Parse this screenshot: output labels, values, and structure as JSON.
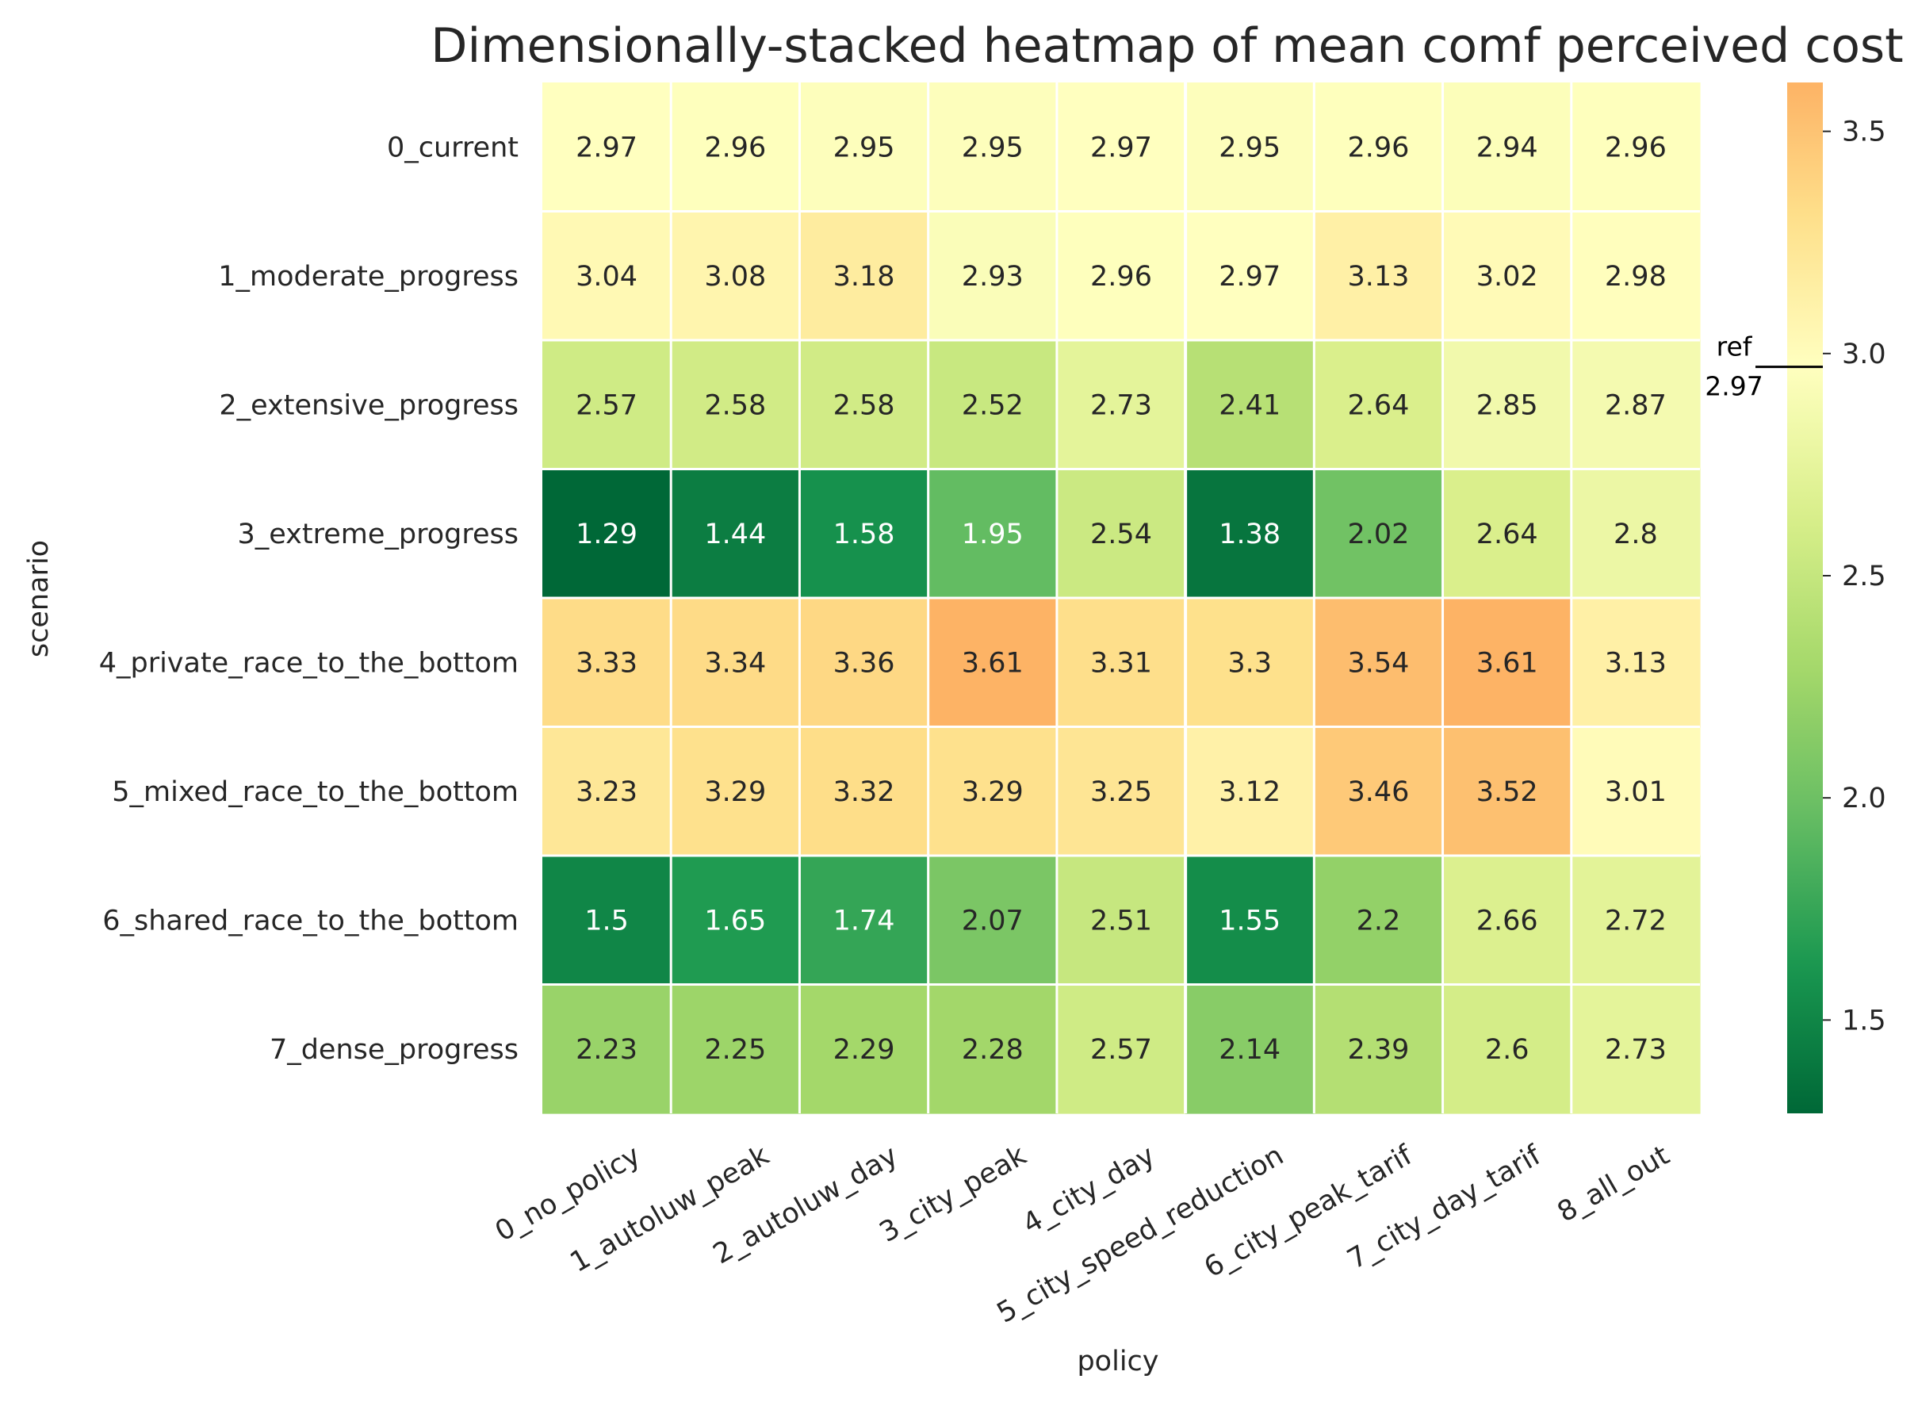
{
  "chart_data": {
    "type": "heatmap",
    "title": "Dimensionally-stacked heatmap of mean comf perceived cost",
    "xlabel": "policy",
    "ylabel": "scenario",
    "columns": [
      "0_no_policy",
      "1_autoluw_peak",
      "2_autoluw_day",
      "3_city_peak",
      "4_city_day",
      "5_city_speed_reduction",
      "6_city_peak_tarif",
      "7_city_day_tarif",
      "8_all_out"
    ],
    "rows": [
      "0_current",
      "1_moderate_progress",
      "2_extensive_progress",
      "3_extreme_progress",
      "4_private_race_to_the_bottom",
      "5_mixed_race_to_the_bottom",
      "6_shared_race_to_the_bottom",
      "7_dense_progress"
    ],
    "values": [
      [
        2.97,
        2.96,
        2.95,
        2.95,
        2.97,
        2.95,
        2.96,
        2.94,
        2.96
      ],
      [
        3.04,
        3.08,
        3.18,
        2.93,
        2.96,
        2.97,
        3.13,
        3.02,
        2.98
      ],
      [
        2.57,
        2.58,
        2.58,
        2.52,
        2.73,
        2.41,
        2.64,
        2.85,
        2.87
      ],
      [
        1.29,
        1.44,
        1.58,
        1.95,
        2.54,
        1.38,
        2.02,
        2.64,
        2.8
      ],
      [
        3.33,
        3.34,
        3.36,
        3.61,
        3.31,
        3.3,
        3.54,
        3.61,
        3.13
      ],
      [
        3.23,
        3.29,
        3.32,
        3.29,
        3.25,
        3.12,
        3.46,
        3.52,
        3.01
      ],
      [
        1.5,
        1.65,
        1.74,
        2.07,
        2.51,
        1.55,
        2.2,
        2.66,
        2.72
      ],
      [
        2.23,
        2.25,
        2.29,
        2.28,
        2.57,
        2.14,
        2.39,
        2.6,
        2.73
      ]
    ],
    "value_labels": [
      [
        "2.97",
        "2.96",
        "2.95",
        "2.95",
        "2.97",
        "2.95",
        "2.96",
        "2.94",
        "2.96"
      ],
      [
        "3.04",
        "3.08",
        "3.18",
        "2.93",
        "2.96",
        "2.97",
        "3.13",
        "3.02",
        "2.98"
      ],
      [
        "2.57",
        "2.58",
        "2.58",
        "2.52",
        "2.73",
        "2.41",
        "2.64",
        "2.85",
        "2.87"
      ],
      [
        "1.29",
        "1.44",
        "1.58",
        "1.95",
        "2.54",
        "1.38",
        "2.02",
        "2.64",
        "2.8"
      ],
      [
        "3.33",
        "3.34",
        "3.36",
        "3.61",
        "3.31",
        "3.3",
        "3.54",
        "3.61",
        "3.13"
      ],
      [
        "3.23",
        "3.29",
        "3.32",
        "3.29",
        "3.25",
        "3.12",
        "3.46",
        "3.52",
        "3.01"
      ],
      [
        "1.5",
        "1.65",
        "1.74",
        "2.07",
        "2.51",
        "1.55",
        "2.2",
        "2.66",
        "2.72"
      ],
      [
        "2.23",
        "2.25",
        "2.29",
        "2.28",
        "2.57",
        "2.14",
        "2.39",
        "2.6",
        "2.73"
      ]
    ],
    "column_group_boundaries_after": [
      5
    ],
    "colormap": "RdYlGn_r",
    "colormap_center": 2.97,
    "vmin": 1.29,
    "vmax": 3.61,
    "colorbar": {
      "ticks": [
        1.5,
        2.0,
        2.5,
        3.0,
        3.5
      ],
      "tick_labels": [
        "1.5",
        "2.0",
        "2.5",
        "3.0",
        "3.5"
      ],
      "reference": {
        "value": 2.97,
        "label_top": "ref",
        "label_bottom": "2.97"
      }
    },
    "grid": true,
    "text_light_threshold": 1.95
  }
}
